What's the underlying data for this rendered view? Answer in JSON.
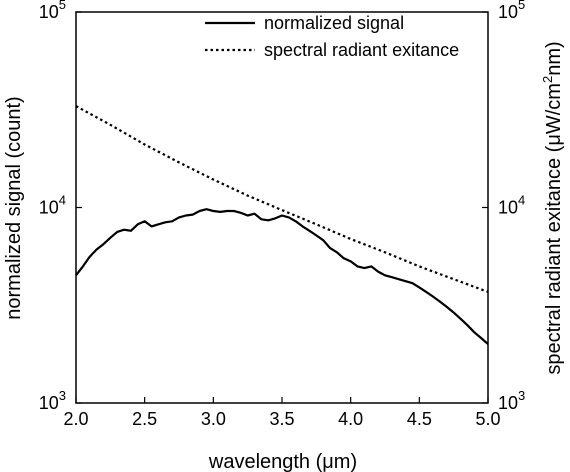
{
  "chart_data": {
    "type": "line",
    "xlabel": "wavelength (μm)",
    "ylabel_left": "normalized signal (count)",
    "ylabel_right": "spectral radiant exitance (μW/cm²nm)",
    "ylabel_right_parts": {
      "prefix": "spectral radiant exitance (μW/cm",
      "superscript": "2",
      "suffix": "nm)"
    },
    "xlim": [
      2.0,
      5.0
    ],
    "ylim": [
      1000,
      100000
    ],
    "yscale": "log",
    "x_ticks": [
      "2.0",
      "2.5",
      "3.0",
      "3.5",
      "4.0",
      "4.5",
      "5.0"
    ],
    "y_ticks": [
      {
        "value": 1000,
        "base": "10",
        "exp": "3"
      },
      {
        "value": 10000,
        "base": "10",
        "exp": "4"
      },
      {
        "value": 100000,
        "base": "10",
        "exp": "5"
      }
    ],
    "grid": false,
    "legend_position": "top-right",
    "series": [
      {
        "name": "normalized signal",
        "style": "solid",
        "color": "#000000",
        "x": [
          2.0,
          2.05,
          2.1,
          2.15,
          2.2,
          2.25,
          2.3,
          2.35,
          2.4,
          2.45,
          2.5,
          2.55,
          2.6,
          2.65,
          2.7,
          2.75,
          2.8,
          2.85,
          2.9,
          2.95,
          3.0,
          3.05,
          3.1,
          3.15,
          3.2,
          3.25,
          3.3,
          3.35,
          3.4,
          3.45,
          3.5,
          3.55,
          3.6,
          3.65,
          3.7,
          3.75,
          3.8,
          3.85,
          3.9,
          3.95,
          4.0,
          4.05,
          4.1,
          4.15,
          4.2,
          4.25,
          4.3,
          4.35,
          4.4,
          4.45,
          4.5,
          4.55,
          4.6,
          4.65,
          4.7,
          4.75,
          4.8,
          4.85,
          4.9,
          4.95,
          5.0
        ],
        "values": [
          4500,
          5000,
          5600,
          6100,
          6500,
          7000,
          7500,
          7700,
          7600,
          8200,
          8500,
          8000,
          8200,
          8400,
          8500,
          8900,
          9100,
          9200,
          9600,
          9800,
          9600,
          9500,
          9600,
          9600,
          9400,
          9100,
          9300,
          8700,
          8600,
          8800,
          9100,
          8900,
          8500,
          8000,
          7600,
          7200,
          6800,
          6200,
          5900,
          5500,
          5300,
          5000,
          4900,
          5000,
          4700,
          4500,
          4400,
          4300,
          4200,
          4100,
          3900,
          3700,
          3500,
          3300,
          3100,
          2900,
          2700,
          2500,
          2300,
          2150,
          2000
        ]
      },
      {
        "name": "spectral radiant exitance",
        "style": "dotted",
        "color": "#000000",
        "x": [
          2.0,
          2.25,
          2.5,
          2.75,
          3.0,
          3.25,
          3.5,
          3.75,
          4.0,
          4.25,
          4.5,
          4.75,
          5.0
        ],
        "values": [
          33000,
          26500,
          21000,
          17000,
          13900,
          11500,
          9700,
          8200,
          6900,
          5900,
          5000,
          4300,
          3700
        ]
      }
    ]
  }
}
